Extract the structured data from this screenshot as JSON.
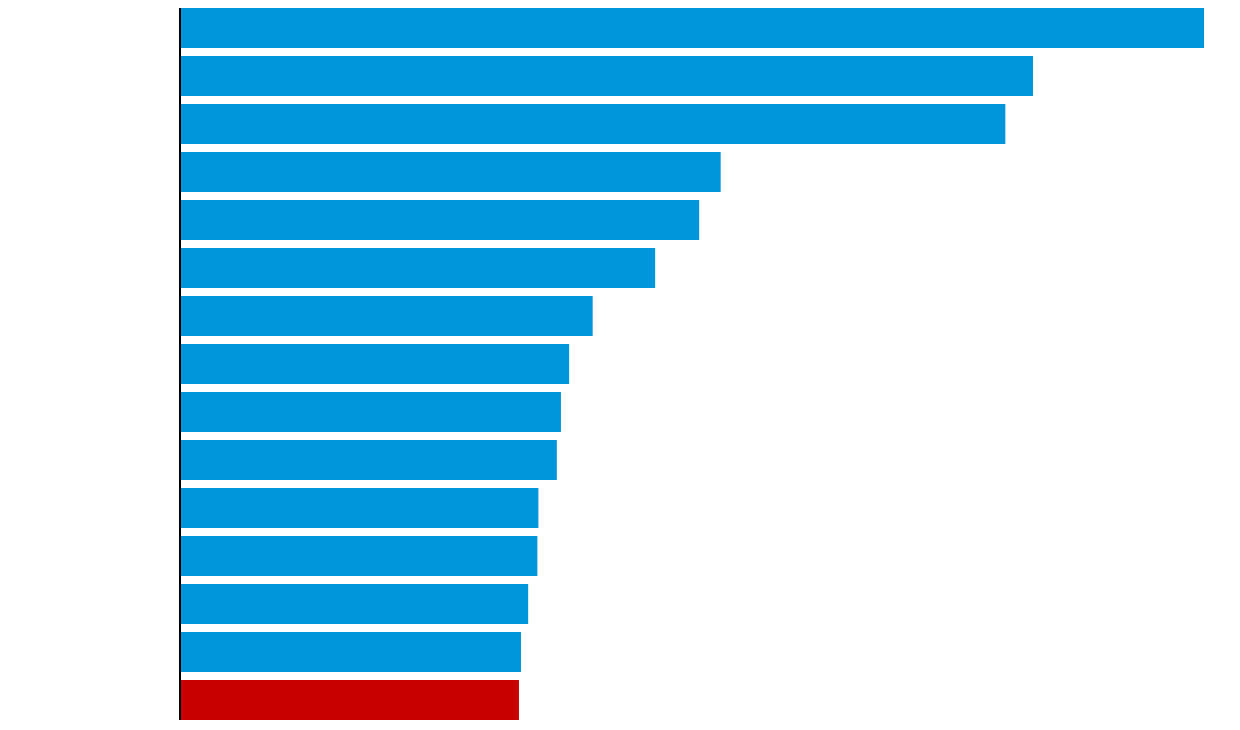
{
  "chart_data": {
    "type": "bar",
    "orientation": "horizontal",
    "title": "",
    "xlabel": "",
    "ylabel": "",
    "grid": false,
    "legend": "none",
    "xlim": [
      0,
      1
    ],
    "values": [
      1.0,
      0.833,
      0.806,
      0.528,
      0.507,
      0.464,
      0.403,
      0.38,
      0.372,
      0.368,
      0.35,
      0.349,
      0.34,
      0.333,
      0.331
    ],
    "highlight_index": 14,
    "colors": {
      "bar": "#0096DB",
      "highlight": "#C80000",
      "axis": "#000000"
    }
  }
}
